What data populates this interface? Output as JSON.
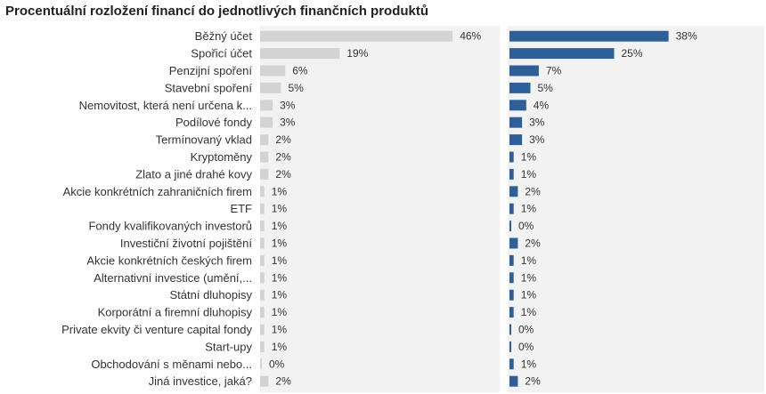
{
  "chart_data": {
    "type": "bar",
    "orientation": "horizontal",
    "title": "Procentuální rozložení financí do jednotlivých finančních produktů",
    "categories": [
      "Běžný účet",
      "Spořicí účet",
      "Penzijní spoření",
      "Stavební spoření",
      "Nemovitost, která není určena k...",
      "Podílové fondy",
      "Termínovaný vklad",
      "Kryptoměny",
      "Zlato a jiné drahé kovy",
      "Akcie konkrétních zahraničních firem",
      "ETF",
      "Fondy kvalifikovaných investorů",
      "Investiční životní pojištění",
      "Akcie konkrétních českých firem",
      "Alternativní investice (umění,...",
      "Státní dluhopisy",
      "Korporátní a firemní dluhopisy",
      "Private ekvity či venture capital fondy",
      "Start-upy",
      "Obchodování s měnami nebo...",
      "Jiná investice, jaká?"
    ],
    "series": [
      {
        "color": "#d3d3d3",
        "values": [
          46,
          19,
          6,
          5,
          3,
          3,
          2,
          2,
          2,
          1,
          1,
          1,
          1,
          1,
          1,
          1,
          1,
          1,
          1,
          0,
          2
        ],
        "labels": [
          "46%",
          "19%",
          "6%",
          "5%",
          "3%",
          "3%",
          "2%",
          "2%",
          "2%",
          "1%",
          "1%",
          "1%",
          "1%",
          "1%",
          "1%",
          "1%",
          "1%",
          "1%",
          "1%",
          "0%",
          "2%"
        ]
      },
      {
        "color": "#2f5f99",
        "values": [
          38,
          25,
          7,
          5,
          4,
          3,
          3,
          1,
          1,
          2,
          1,
          0,
          2,
          1,
          1,
          1,
          1,
          0,
          0,
          1,
          2
        ],
        "labels": [
          "38%",
          "25%",
          "7%",
          "5%",
          "4%",
          "3%",
          "3%",
          "1%",
          "1%",
          "2%",
          "1%",
          "0%",
          "2%",
          "1%",
          "1%",
          "1%",
          "1%",
          "0%",
          "0%",
          "1%",
          "2%"
        ]
      }
    ],
    "grid": false,
    "legend": "none"
  }
}
